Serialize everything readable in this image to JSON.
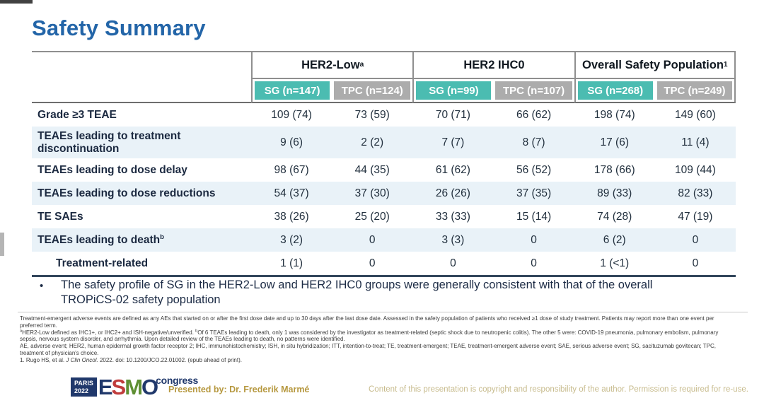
{
  "slide": {
    "title": "Safety Summary"
  },
  "table": {
    "groups": [
      {
        "label": "HER2-Low",
        "sup": "a"
      },
      {
        "label": "HER2 IHC0",
        "sup": ""
      },
      {
        "label": "Overall Safety Population",
        "sup": "1"
      }
    ],
    "columns": [
      {
        "label": "SG (n=147)"
      },
      {
        "label": "TPC (n=124)"
      },
      {
        "label": "SG (n=99)"
      },
      {
        "label": "TPC (n=107)"
      },
      {
        "label": "SG (n=268)"
      },
      {
        "label": "TPC (n=249)"
      }
    ],
    "rows": [
      {
        "label": "Grade ≥3 TEAE",
        "sup": "",
        "values": [
          "109 (74)",
          "73 (59)",
          "70 (71)",
          "66 (62)",
          "198 (74)",
          "149 (60)"
        ]
      },
      {
        "label": "TEAEs leading to treatment discontinuation",
        "sup": "",
        "values": [
          "9 (6)",
          "2 (2)",
          "7 (7)",
          "8 (7)",
          "17 (6)",
          "11 (4)"
        ]
      },
      {
        "label": "TEAEs leading to dose delay",
        "sup": "",
        "values": [
          "98 (67)",
          "44 (35)",
          "61 (62)",
          "56 (52)",
          "178 (66)",
          "109 (44)"
        ]
      },
      {
        "label": "TEAEs leading to dose reductions",
        "sup": "",
        "values": [
          "54 (37)",
          "37 (30)",
          "26 (26)",
          "37 (35)",
          "89 (33)",
          "82 (33)"
        ]
      },
      {
        "label": "TE SAEs",
        "sup": "",
        "values": [
          "38 (26)",
          "25 (20)",
          "33 (33)",
          "15 (14)",
          "74 (28)",
          "47 (19)"
        ]
      },
      {
        "label": "TEAEs leading to death",
        "sup": "b",
        "values": [
          "3 (2)",
          "0",
          "3 (3)",
          "0",
          "6 (2)",
          "0"
        ]
      },
      {
        "label": "Treatment-related",
        "sup": "",
        "values": [
          "1 (1)",
          "0",
          "0",
          "0",
          "1 (<1)",
          "0"
        ]
      }
    ]
  },
  "bullet": {
    "marker": "•",
    "text": "The safety profile of SG in the HER2-Low and HER2 IHC0 groups were generally consistent with that of the overall TROPiCS-02 safety population"
  },
  "footnotes": {
    "para1": "Treatment-emergent adverse events are defined as any AEs that started on or after the first dose date and up to 30 days after the last dose date. Assessed in the safety population of patients who received ≥1 dose of study treatment. Patients may report more than one event per preferred term.",
    "para2_sup_a": "a",
    "para2_part1": "HER2-Low defined as IHC1+, or IHC2+ and ISH-negative/unverified. ",
    "para2_sup_b": "b",
    "para2_part2": "Of 6 TEAEs leading to death, only 1 was considered by the investigator as treatment-related (septic shock due to neutropenic colitis). The other 5 were: COVID-19 pneumonia, pulmonary embolism, pulmonary sepsis, nervous system disorder, and arrhythmia. Upon detailed review of the TEAEs leading to death, no patterns were identified.",
    "para3": "AE, adverse event; HER2, human epidermal growth factor receptor 2; IHC, immunohistochemistry; ISH, in situ hybridization; ITT, intention-to-treat; TE, treatment-emergent; TEAE, treatment-emergent adverse event; SAE, serious adverse event; SG, sacituzumab govitecan; TPC, treatment of physician's choice.",
    "cite_pre": "1. Rugo HS, et al. ",
    "cite_journal": "J Clin Oncol.",
    "cite_post": " 2022. doi: 10.1200/JCO.22.01002. (epub ahead of print)."
  },
  "footer": {
    "logo": {
      "paris": "PARIS",
      "year": "2022",
      "letters": [
        "E",
        "S",
        "M",
        "O"
      ],
      "congress": "congress"
    },
    "presented_by": "Presented by: Dr. Frederik Marmé",
    "copyright": "Content of this presentation is copyright and responsibility of the author. Permission is required for re-use."
  },
  "colors": {
    "title_blue": "#2365a8",
    "teal_header": "#4bbcb1",
    "gray_header": "#acacac",
    "row_stripe": "#e9f2f8",
    "table_border": "#8f8f8f",
    "table_bottom_border": "#33475c",
    "presented_gold": "#b6983f",
    "copyright_gold": "#c8bc8e",
    "esmo_navy": "#20386b",
    "esmo_red": "#c03c3c",
    "esmo_green": "#5e8f33"
  }
}
